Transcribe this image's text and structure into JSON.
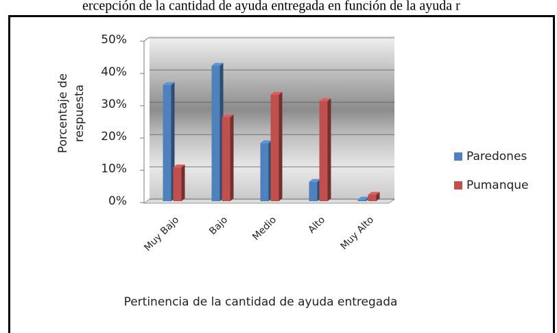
{
  "chart_data": {
    "type": "bar",
    "title": "ercepción de la cantidad de ayuda entregada en función de  la  ayuda r",
    "x_label": "Pertinencia de la cantidad de ayuda entregada",
    "y_label": "Porcentaje de respuesta",
    "categories": [
      "Muy Bajo",
      "Bajo",
      "Medio",
      "Alto",
      "Muy Alto"
    ],
    "series": [
      {
        "name": "Paredones",
        "color": "#4f81bd",
        "values": [
          36,
          42,
          18,
          6,
          0.5
        ]
      },
      {
        "name": "Pumanque",
        "color": "#c0504d",
        "values": [
          10.5,
          26,
          33,
          31,
          2
        ]
      }
    ],
    "ylim": [
      0,
      50
    ],
    "yticks": [
      {
        "value": 0,
        "label": "0%"
      },
      {
        "value": 10,
        "label": "10%"
      },
      {
        "value": 20,
        "label": "20%"
      },
      {
        "value": 30,
        "label": "30%"
      },
      {
        "value": 40,
        "label": "40%"
      },
      {
        "value": 50,
        "label": "50%"
      }
    ],
    "grid": true,
    "legend": "right"
  }
}
